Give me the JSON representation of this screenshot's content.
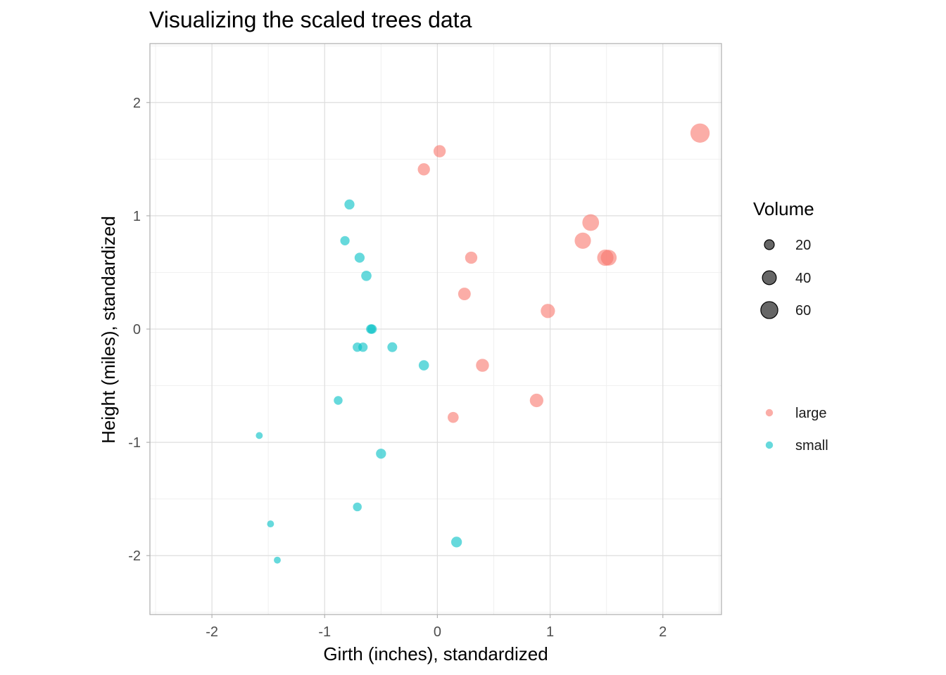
{
  "chart_data": {
    "type": "scatter",
    "title": "Visualizing the scaled trees data",
    "xlabel": "Girth (inches), standardized",
    "ylabel": "Height (miles), standardized",
    "xlim": [
      -2.55,
      2.52
    ],
    "ylim": [
      -2.52,
      2.52
    ],
    "xticks": [
      -2,
      -1,
      0,
      1,
      2
    ],
    "yticks": [
      -2,
      -1,
      0,
      1,
      2
    ],
    "x_tick_labels": [
      "-2",
      "-1",
      "0",
      "1",
      "2"
    ],
    "y_tick_labels": [
      "-2",
      "-1",
      "0",
      "1",
      "2"
    ],
    "grid": true,
    "point_alpha": 0.6,
    "colors": {
      "large": "#F8766D",
      "small": "#00BFC4"
    },
    "legend": {
      "size_title": "Volume",
      "size_entries": [
        {
          "label": "20",
          "value": 20
        },
        {
          "label": "40",
          "value": 40
        },
        {
          "label": "60",
          "value": 60
        }
      ],
      "color_entries": [
        {
          "label": "large",
          "group": "large"
        },
        {
          "label": "small",
          "group": "small"
        }
      ],
      "placement": "right"
    },
    "series": [
      {
        "name": "large",
        "points": [
          {
            "x": 0.02,
            "y": 1.57,
            "volume": 31
          },
          {
            "x": -0.12,
            "y": 1.41,
            "volume": 31
          },
          {
            "x": 0.3,
            "y": 0.63,
            "volume": 31
          },
          {
            "x": 0.24,
            "y": 0.31,
            "volume": 33
          },
          {
            "x": 0.4,
            "y": -0.32,
            "volume": 35
          },
          {
            "x": 0.14,
            "y": -0.78,
            "volume": 25
          },
          {
            "x": 0.88,
            "y": -0.63,
            "volume": 38
          },
          {
            "x": 0.98,
            "y": 0.16,
            "volume": 42
          },
          {
            "x": 1.29,
            "y": 0.78,
            "volume": 55
          },
          {
            "x": 1.36,
            "y": 0.94,
            "volume": 58
          },
          {
            "x": 1.49,
            "y": 0.63,
            "volume": 55
          },
          {
            "x": 1.52,
            "y": 0.63,
            "volume": 52
          },
          {
            "x": 2.33,
            "y": 1.73,
            "volume": 77
          }
        ]
      },
      {
        "name": "small",
        "points": [
          {
            "x": -1.58,
            "y": -0.94,
            "volume": 10
          },
          {
            "x": -1.48,
            "y": -1.72,
            "volume": 10
          },
          {
            "x": -1.42,
            "y": -2.04,
            "volume": 10
          },
          {
            "x": -0.88,
            "y": -0.63,
            "volume": 16
          },
          {
            "x": -0.82,
            "y": 0.78,
            "volume": 18
          },
          {
            "x": -0.78,
            "y": 1.1,
            "volume": 21
          },
          {
            "x": -0.71,
            "y": -1.57,
            "volume": 16
          },
          {
            "x": -0.71,
            "y": -0.16,
            "volume": 18
          },
          {
            "x": -0.69,
            "y": 0.63,
            "volume": 21
          },
          {
            "x": -0.66,
            "y": -0.16,
            "volume": 18
          },
          {
            "x": -0.63,
            "y": 0.47,
            "volume": 22
          },
          {
            "x": -0.59,
            "y": 0.0,
            "volume": 19
          },
          {
            "x": -0.58,
            "y": 0.0,
            "volume": 19
          },
          {
            "x": -0.5,
            "y": -1.1,
            "volume": 21
          },
          {
            "x": -0.4,
            "y": -0.16,
            "volume": 20
          },
          {
            "x": -0.12,
            "y": -0.32,
            "volume": 22
          },
          {
            "x": 0.17,
            "y": -1.88,
            "volume": 24
          }
        ]
      }
    ]
  }
}
